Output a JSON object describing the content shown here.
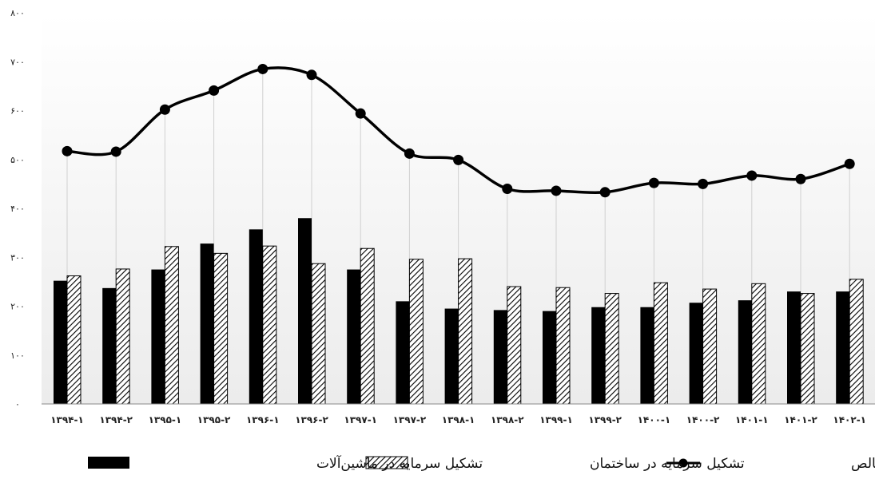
{
  "chart_data": {
    "type": "bar",
    "title": "",
    "xlabel": "",
    "ylabel": "",
    "ylim": [
      0,
      800
    ],
    "y_ticks": [
      0,
      100,
      200,
      300,
      400,
      500,
      600,
      700,
      800
    ],
    "y_tick_labels": [
      "۰",
      "۱۰۰",
      "۲۰۰",
      "۳۰۰",
      "۴۰۰",
      "۵۰۰",
      "۶۰۰",
      "۷۰۰",
      "۸۰۰"
    ],
    "categories": [
      "۱۳۹۴-۱",
      "۱۳۹۴-۲",
      "۱۳۹۵-۱",
      "۱۳۹۵-۲",
      "۱۳۹۶-۱",
      "۱۳۹۶-۲",
      "۱۳۹۷-۱",
      "۱۳۹۷-۲",
      "۱۳۹۸-۱",
      "۱۳۹۸-۲",
      "۱۳۹۹-۱",
      "۱۳۹۹-۲",
      "۱۴۰۰-۱",
      "۱۴۰۰-۲",
      "۱۴۰۱-۱",
      "۱۴۰۱-۲",
      "۱۴۰۲-۱"
    ],
    "grid": "vertical",
    "legend_position": "bottom",
    "series": [
      {
        "name": "تشکیل سرمایه در ماشین‌آلات",
        "kind": "bar",
        "fill": "solid-black",
        "values": [
          252,
          237,
          275,
          328,
          357,
          380,
          275,
          210,
          195,
          192,
          190,
          198,
          198,
          207,
          212,
          230,
          230
        ]
      },
      {
        "name": "تشکیل سرمایه در ساختمان",
        "kind": "bar",
        "fill": "diagonal-hatch",
        "values": [
          262,
          276,
          322,
          308,
          323,
          287,
          318,
          296,
          297,
          240,
          238,
          226,
          248,
          235,
          246,
          226,
          255
        ]
      },
      {
        "name": "تشکیل سرمایه ثابت ناخالص",
        "kind": "line",
        "marker": "circle",
        "values": [
          517,
          516,
          602,
          641,
          685,
          673,
          594,
          512,
          499,
          440,
          436,
          433,
          452,
          450,
          467,
          460,
          491
        ]
      }
    ]
  }
}
